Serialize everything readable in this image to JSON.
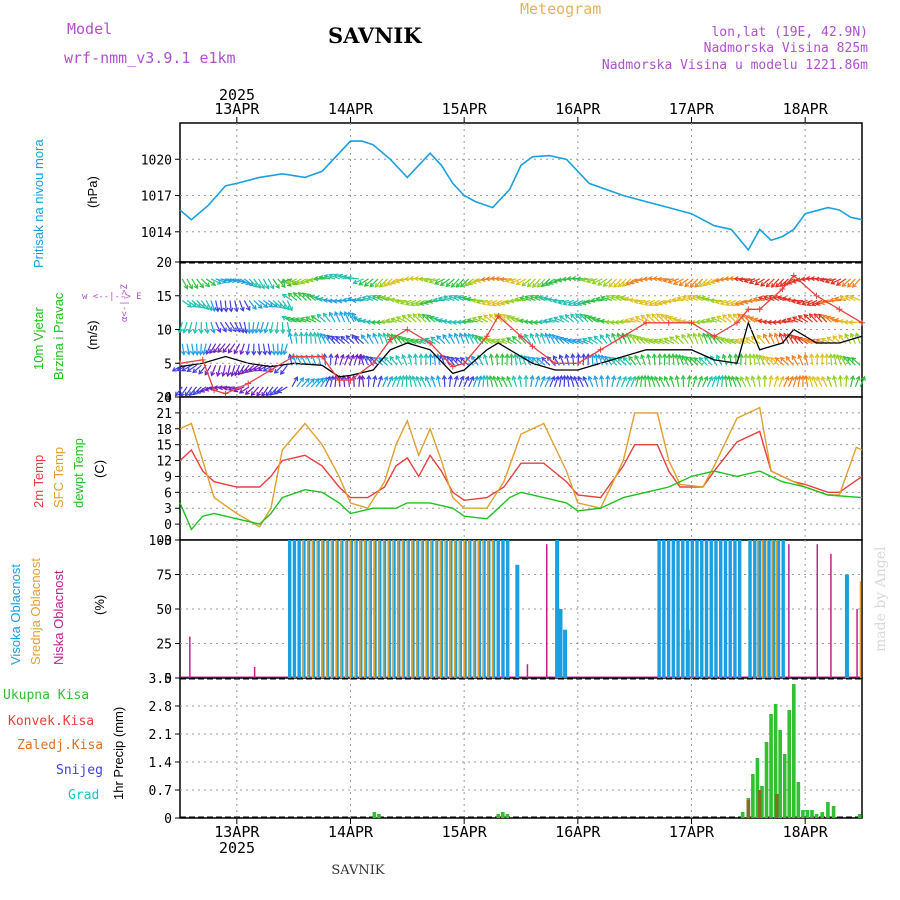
{
  "header": {
    "model_label": "Model",
    "model_name": "wrf-nmm_v3.9.1 e1km",
    "station": "SAVNIK",
    "meteogram": "Meteogram",
    "lonlat": "lon,lat (19E, 42.9N)",
    "elev": "Nadmorska Visina 825m",
    "elev_model": "Nadmorska Visina u modelu 1221.86m",
    "footer_station": "SAVNIK",
    "watermark": "made by Angel",
    "year": "2025"
  },
  "colors": {
    "pressure": "#1aa0e0",
    "temp2m": "#e84040",
    "sfc": "#e0a030",
    "dew": "#20c020",
    "high_cloud": "#1aa0e0",
    "mid_cloud": "#e0a030",
    "low_cloud": "#c02090",
    "total_precip": "#30c030",
    "conv": "#e84040",
    "frozen": "#e07020",
    "snow": "#4040e0",
    "hail": "#20c0c0",
    "label_purple": "#b050d0",
    "label_orange": "#e8b060"
  },
  "time_axis": {
    "days": [
      "13APR",
      "14APR",
      "15APR",
      "16APR",
      "17APR",
      "18APR"
    ]
  },
  "chart_data": [
    {
      "id": "pressure",
      "type": "line",
      "ylabel_left": "Pritisak na nivou mora",
      "unit": "(hPa)",
      "ylim": [
        1011.5,
        1023
      ],
      "yticks": [
        "1014",
        "1017",
        "1020"
      ],
      "x_day_range": [
        12.5,
        18.5
      ],
      "series": [
        {
          "x": [
            12.5,
            12.6,
            12.75,
            12.9,
            13.0,
            13.2,
            13.4,
            13.6,
            13.75,
            13.9,
            14.0,
            14.1,
            14.2,
            14.35,
            14.5,
            14.6,
            14.7,
            14.8,
            14.9,
            15.0,
            15.1,
            15.25,
            15.4,
            15.5,
            15.6,
            15.75,
            15.9,
            16.0,
            16.1,
            16.25,
            16.4,
            16.6,
            16.8,
            17.0,
            17.2,
            17.35,
            17.5,
            17.6,
            17.7,
            17.8,
            17.9,
            18.0,
            18.2,
            18.3,
            18.4,
            18.5
          ],
          "y": [
            1015.8,
            1015,
            1016.2,
            1017.8,
            1018,
            1018.5,
            1018.8,
            1018.5,
            1019,
            1020.5,
            1021.5,
            1021.5,
            1021.2,
            1020,
            1018.5,
            1019.5,
            1020.5,
            1019.5,
            1018,
            1017,
            1016.5,
            1016,
            1017.5,
            1019.5,
            1020.2,
            1020.3,
            1020,
            1019,
            1018,
            1017.5,
            1017,
            1016.5,
            1016,
            1015.5,
            1014.5,
            1014.2,
            1012.5,
            1014.2,
            1013.3,
            1013.6,
            1014.2,
            1015.5,
            1016,
            1015.8,
            1015.2,
            1015
          ]
        }
      ]
    },
    {
      "id": "wind",
      "type": "line",
      "ylabel_left_1": "10m Vjetar",
      "ylabel_left_2": "Brzina i Pravac",
      "unit": "(m/s)",
      "compass_label": "w <--|--> E",
      "compass_side_label": "α<-|->Z",
      "ylim": [
        0,
        20
      ],
      "yticks": [
        "0",
        "5",
        "10",
        "15",
        "20"
      ],
      "x_day_range": [
        12.5,
        18.5
      ],
      "series": [
        {
          "x": [
            12.5,
            12.7,
            12.9,
            13.1,
            13.3,
            13.5,
            13.75,
            13.9,
            14.0,
            14.2,
            14.35,
            14.5,
            14.7,
            14.9,
            15.0,
            15.2,
            15.3,
            15.5,
            15.6,
            15.8,
            16.0,
            16.2,
            16.4,
            16.6,
            16.8,
            17.0,
            17.2,
            17.4,
            17.5,
            17.6,
            17.8,
            17.9,
            18.1,
            18.3,
            18.5
          ],
          "y": [
            4.5,
            5,
            6,
            5,
            4.5,
            5,
            4.7,
            3,
            3.2,
            4,
            7,
            8,
            7,
            3.5,
            4,
            7,
            8,
            6,
            5,
            4,
            4,
            5,
            6,
            7,
            7,
            7,
            5.5,
            5,
            11,
            7,
            8,
            10,
            8,
            8,
            9
          ]
        },
        {
          "x": [
            12.5,
            12.7,
            12.8,
            12.9,
            13.1,
            13.3,
            13.5,
            13.75,
            13.9,
            14.0,
            14.2,
            14.35,
            14.5,
            14.7,
            14.9,
            15.0,
            15.2,
            15.3,
            15.5,
            15.6,
            15.8,
            16.0,
            16.2,
            16.4,
            16.6,
            16.8,
            17.0,
            17.2,
            17.4,
            17.5,
            17.6,
            17.8,
            17.9,
            18.1,
            18.3,
            18.5
          ],
          "y": [
            5,
            5.5,
            1,
            0.5,
            2,
            4,
            6,
            6,
            2.5,
            2.5,
            5,
            8.5,
            10,
            8,
            4.5,
            5,
            9,
            12,
            9,
            7.5,
            5,
            5,
            7,
            9,
            11,
            11,
            11,
            9,
            11,
            13,
            13,
            16,
            18,
            15,
            13,
            11
          ]
        }
      ]
    },
    {
      "id": "temperature",
      "type": "line",
      "legend": [
        "2m Temp",
        "SFC Temp",
        "dewpt Temp"
      ],
      "unit": "(C)",
      "ylim": [
        -3,
        24
      ],
      "yticks": [
        "-3",
        "0",
        "3",
        "6",
        "9",
        "12",
        "15",
        "18",
        "21",
        "24"
      ],
      "x_day_range": [
        12.5,
        18.5
      ],
      "series": [
        {
          "name": "2m Temp",
          "x": [
            12.5,
            12.6,
            12.7,
            12.8,
            13.0,
            13.2,
            13.3,
            13.4,
            13.6,
            13.75,
            13.9,
            14.0,
            14.15,
            14.3,
            14.4,
            14.5,
            14.6,
            14.7,
            14.8,
            14.9,
            15.0,
            15.2,
            15.35,
            15.5,
            15.7,
            15.9,
            16.0,
            16.2,
            16.4,
            16.5,
            16.7,
            16.8,
            16.9,
            17.1,
            17.2,
            17.4,
            17.6,
            17.7,
            17.9,
            18.0,
            18.2,
            18.3,
            18.5
          ],
          "y": [
            12,
            14,
            10,
            8,
            7,
            7,
            9,
            12,
            13,
            11,
            7,
            5,
            5,
            7,
            11,
            12.5,
            9,
            13,
            10,
            6,
            4.5,
            5,
            7,
            11.5,
            11.5,
            8,
            5.5,
            5,
            11,
            15,
            15,
            10,
            7,
            7,
            10,
            15.5,
            17.5,
            10,
            8,
            7.5,
            6,
            6,
            9
          ]
        },
        {
          "name": "SFC Temp",
          "x": [
            12.5,
            12.6,
            12.7,
            12.8,
            13.0,
            13.2,
            13.3,
            13.4,
            13.6,
            13.75,
            13.9,
            14.0,
            14.15,
            14.3,
            14.4,
            14.5,
            14.6,
            14.7,
            14.8,
            14.9,
            15.0,
            15.2,
            15.35,
            15.5,
            15.7,
            15.9,
            16.0,
            16.2,
            16.4,
            16.5,
            16.7,
            16.8,
            16.9,
            17.1,
            17.2,
            17.4,
            17.6,
            17.7,
            17.9,
            18.0,
            18.2,
            18.3,
            18.45,
            18.5
          ],
          "y": [
            18,
            19,
            12,
            5,
            2,
            -0.5,
            3,
            14,
            19,
            15,
            9,
            4,
            3,
            8,
            15,
            19.5,
            13,
            18,
            12,
            5,
            3,
            3,
            8,
            17,
            19,
            10,
            4,
            3,
            12,
            21,
            21,
            12,
            7.5,
            7,
            11,
            20,
            22,
            10,
            8,
            7,
            5.5,
            5.5,
            14.5,
            14
          ]
        },
        {
          "name": "dewpt Temp",
          "x": [
            12.5,
            12.6,
            12.7,
            12.8,
            13.0,
            13.2,
            13.3,
            13.4,
            13.6,
            13.75,
            13.9,
            14.0,
            14.2,
            14.4,
            14.5,
            14.7,
            14.9,
            15.0,
            15.2,
            15.4,
            15.5,
            15.7,
            15.9,
            16.0,
            16.2,
            16.4,
            16.6,
            16.8,
            17.0,
            17.2,
            17.4,
            17.6,
            17.8,
            18.0,
            18.2,
            18.5
          ],
          "y": [
            4,
            -1,
            1.5,
            2,
            1,
            0,
            2,
            5,
            6.5,
            6,
            4,
            2,
            3,
            3,
            4,
            4,
            3,
            1.5,
            1,
            5,
            6,
            5,
            4,
            2.5,
            3,
            5,
            6,
            7,
            9,
            10,
            9,
            10,
            8,
            7,
            5.5,
            5
          ]
        }
      ]
    },
    {
      "id": "clouds",
      "type": "bar",
      "legend": [
        "Visoka Oblacnost",
        "Srednja Oblacnost",
        "Niska Oblacnost"
      ],
      "unit": "(%)",
      "ylim": [
        0,
        100
      ],
      "yticks": [
        "0",
        "25",
        "50",
        "75",
        "100"
      ],
      "x_day_range": [
        12.5,
        18.5
      ],
      "blocks": [
        {
          "name": "Visoka Oblacnost",
          "from": 13.45,
          "to": 15.4,
          "value": 100
        },
        {
          "name": "Visoka Oblacnost",
          "from": 16.7,
          "to": 17.45,
          "value": 100
        },
        {
          "name": "Visoka Oblacnost",
          "from": 17.5,
          "to": 17.8,
          "value": 100
        },
        {
          "name": "Srednja Oblacnost",
          "from": 13.55,
          "to": 15.25,
          "value": 100
        },
        {
          "name": "Srednja Oblacnost",
          "from": 17.55,
          "to": 17.75,
          "value": 100
        }
      ],
      "spikes": [
        {
          "x": 12.58,
          "value": 30,
          "name": "Niska Oblacnost"
        },
        {
          "x": 13.15,
          "value": 8,
          "name": "Niska Oblacnost"
        },
        {
          "x": 15.45,
          "value": 82,
          "name": "Visoka Oblacnost"
        },
        {
          "x": 15.55,
          "value": 10,
          "name": "Niska Oblacnost"
        },
        {
          "x": 15.72,
          "value": 97,
          "name": "Niska Oblacnost"
        },
        {
          "x": 15.8,
          "value": 100,
          "name": "Visoka Oblacnost"
        },
        {
          "x": 15.83,
          "value": 50,
          "name": "Visoka Oblacnost"
        },
        {
          "x": 15.87,
          "value": 35,
          "name": "Visoka Oblacnost"
        },
        {
          "x": 16.95,
          "value": 35,
          "name": "Visoka Oblacnost"
        },
        {
          "x": 17.85,
          "value": 97,
          "name": "Niska Oblacnost"
        },
        {
          "x": 18.1,
          "value": 97,
          "name": "Niska Oblacnost"
        },
        {
          "x": 18.22,
          "value": 90,
          "name": "Niska Oblacnost"
        },
        {
          "x": 18.35,
          "value": 75,
          "name": "Visoka Oblacnost"
        },
        {
          "x": 18.45,
          "value": 50,
          "name": "Niska Oblacnost"
        },
        {
          "x": 18.48,
          "value": 70,
          "name": "Srednja Oblacnost"
        }
      ]
    },
    {
      "id": "precip",
      "type": "bar",
      "legend": [
        "Ukupna Kisa",
        "Konvek.Kisa",
        "Zaledj.Kisa",
        "Snijeg",
        "Grad"
      ],
      "unit": "1hr Precip (mm)",
      "ylim": [
        0,
        3.5
      ],
      "yticks": [
        "0",
        "0.7",
        "1.4",
        "2.1",
        "2.8",
        "3.5"
      ],
      "x_day_range": [
        12.5,
        18.5
      ],
      "bars": [
        {
          "x": 14.21,
          "value": 0.15
        },
        {
          "x": 14.25,
          "value": 0.1
        },
        {
          "x": 15.3,
          "value": 0.1
        },
        {
          "x": 15.34,
          "value": 0.15
        },
        {
          "x": 15.38,
          "value": 0.1
        },
        {
          "x": 17.45,
          "value": 0.15
        },
        {
          "x": 17.5,
          "value": 0.5
        },
        {
          "x": 17.54,
          "value": 1.1
        },
        {
          "x": 17.58,
          "value": 1.5
        },
        {
          "x": 17.62,
          "value": 0.8
        },
        {
          "x": 17.66,
          "value": 1.9
        },
        {
          "x": 17.7,
          "value": 2.6
        },
        {
          "x": 17.74,
          "value": 2.85
        },
        {
          "x": 17.78,
          "value": 2.2
        },
        {
          "x": 17.82,
          "value": 1.6
        },
        {
          "x": 17.86,
          "value": 2.7
        },
        {
          "x": 17.9,
          "value": 3.35
        },
        {
          "x": 17.94,
          "value": 0.9
        },
        {
          "x": 17.98,
          "value": 0.2
        },
        {
          "x": 18.02,
          "value": 0.2
        },
        {
          "x": 18.06,
          "value": 0.2
        },
        {
          "x": 18.1,
          "value": 0.1
        },
        {
          "x": 18.15,
          "value": 0.15
        },
        {
          "x": 18.2,
          "value": 0.4
        },
        {
          "x": 18.25,
          "value": 0.3
        },
        {
          "x": 18.48,
          "value": 0.1
        }
      ],
      "conv_bars": [
        {
          "x": 17.5,
          "value": 0.45
        },
        {
          "x": 17.6,
          "value": 0.7
        },
        {
          "x": 17.75,
          "value": 0.6
        }
      ]
    }
  ]
}
